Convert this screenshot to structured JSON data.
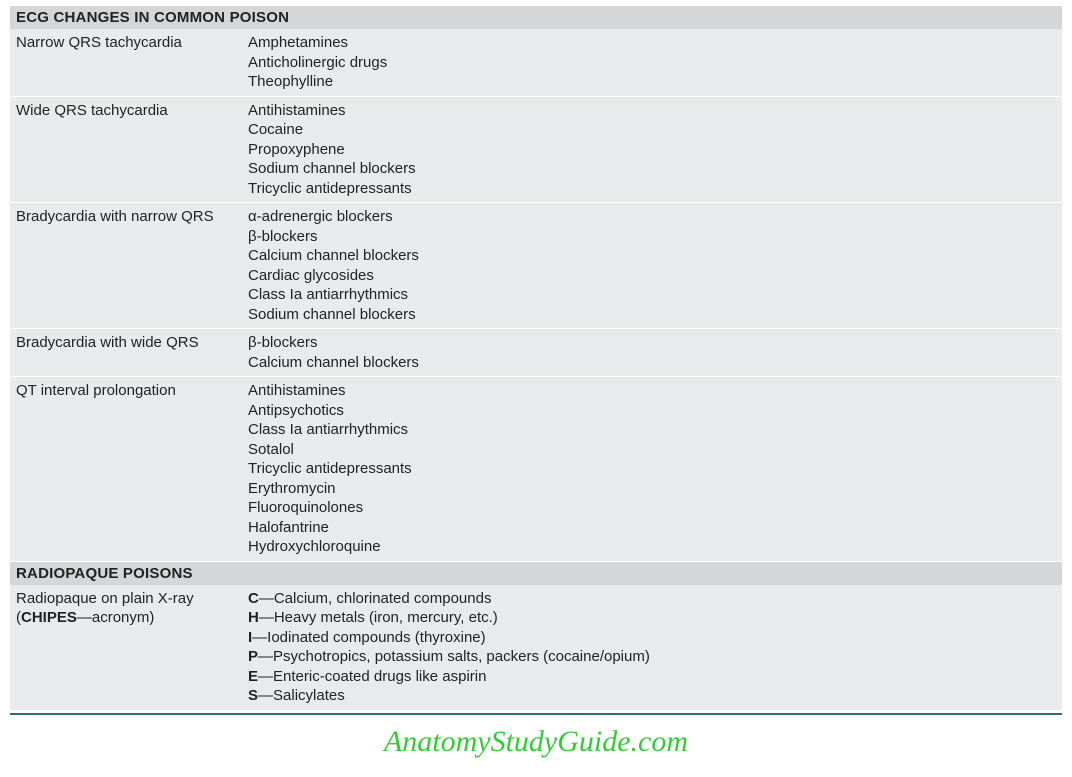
{
  "colors": {
    "header_bg": "#d4d6d7",
    "row_bg": "#e9eaeb",
    "text": "#222222",
    "watermark": "#33cc33",
    "bottom_rule": "#2e6e6e"
  },
  "section1": {
    "title": "ECG CHANGES IN COMMON POISON",
    "rows": [
      {
        "label": "Narrow QRS tachycardia",
        "drugs": [
          "Amphetamines",
          "Anticholinergic drugs",
          "Theophylline"
        ]
      },
      {
        "label": "Wide QRS tachycardia",
        "drugs": [
          "Antihistamines",
          "Cocaine",
          "Propoxyphene",
          "Sodium channel blockers",
          "Tricyclic antidepressants"
        ]
      },
      {
        "label": "Bradycardia with narrow QRS",
        "drugs": [
          "α-adrenergic blockers",
          "β-blockers",
          "Calcium channel blockers",
          "Cardiac glycosides",
          "Class Ia antiarrhythmics",
          "Sodium channel blockers"
        ]
      },
      {
        "label": "Bradycardia with wide QRS",
        "drugs": [
          "β-blockers",
          "Calcium channel blockers"
        ]
      },
      {
        "label": "QT interval prolongation",
        "drugs": [
          "Antihistamines",
          "Antipsychotics",
          "Class Ia antiarrhythmics",
          "Sotalol",
          "Tricyclic antidepressants",
          "Erythromycin",
          "Fluoroquinolones",
          "Halofantrine",
          "Hydroxychloroquine"
        ]
      }
    ]
  },
  "section2": {
    "title": "RADIOPAQUE POISONS",
    "label_line1": "Radiopaque on plain X-ray",
    "label_line2_prefix": "(",
    "label_line2_bold": "CHIPES",
    "label_line2_suffix": "—acronym)",
    "items": [
      {
        "letter": "C",
        "text": "—Calcium, chlorinated compounds"
      },
      {
        "letter": "H",
        "text": "—Heavy metals (iron, mercury, etc.)"
      },
      {
        "letter": "I",
        "text": "—Iodinated compounds (thyroxine)"
      },
      {
        "letter": "P",
        "text": "—Psychotropics, potassium salts, packers (cocaine/opium)"
      },
      {
        "letter": "E",
        "text": "—Enteric-coated drugs like aspirin"
      },
      {
        "letter": "S",
        "text": "—Salicylates"
      }
    ]
  },
  "watermark": "AnatomyStudyGuide.com"
}
